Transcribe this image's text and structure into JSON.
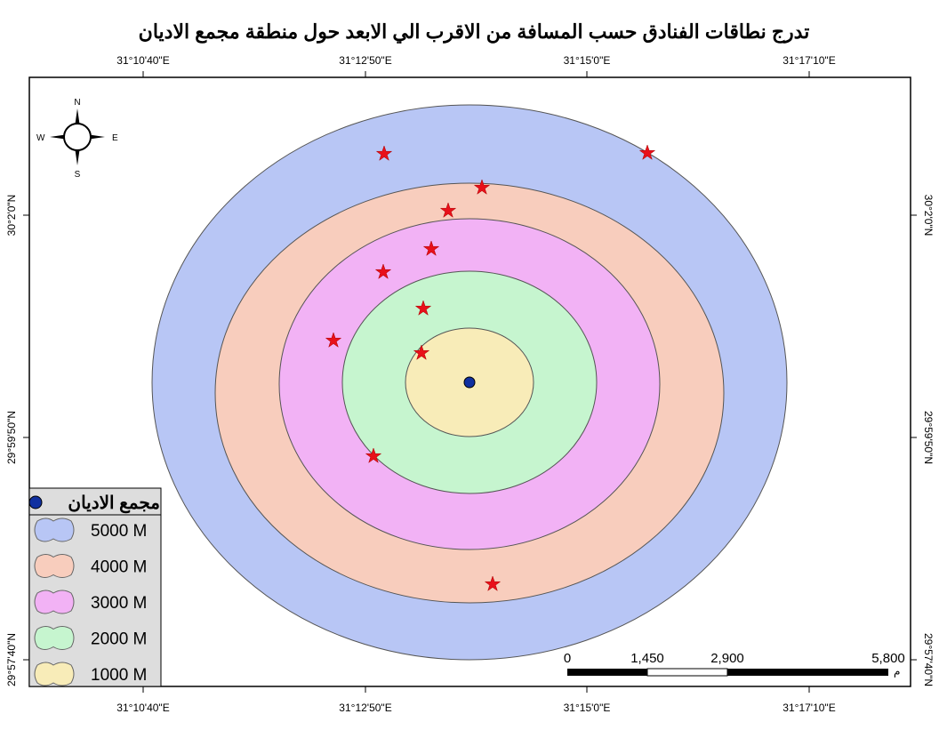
{
  "title": "تدرج نطاقات الفنادق حسب المسافة من الاقرب الي الابعد حول منطقة مجمع الاديان",
  "x_labels": [
    "31°10'40\"E",
    "31°12'50\"E",
    "31°15'0\"E",
    "31°17'10\"E"
  ],
  "y_labels": [
    "30°2'0\"N",
    "29°59'50\"N",
    "29°57'40\"N"
  ],
  "compass": {
    "n": "N",
    "s": "S",
    "e": "E",
    "w": "W"
  },
  "legend": {
    "title": "مجمع الاديان",
    "items": [
      "5000 M",
      "4000 M",
      "3000 M",
      "2000 M",
      "1000 M"
    ]
  },
  "scale": {
    "ticks": [
      "0",
      "1,450",
      "2,900",
      "5,800"
    ],
    "unit": "م"
  }
}
